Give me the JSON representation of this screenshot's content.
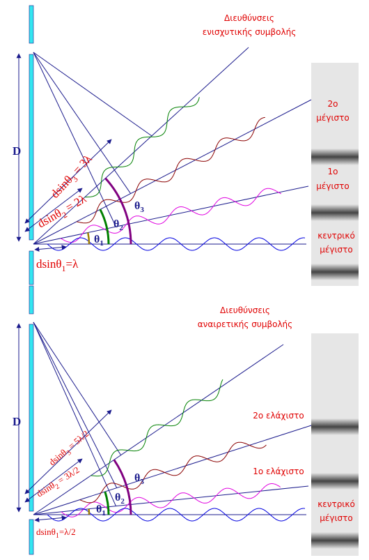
{
  "top": {
    "heading": [
      "Διευθύνσεις",
      "ενισχυτικής συμβολής"
    ],
    "second": [
      "2ο",
      "μέγιστο"
    ],
    "first": [
      "1ο",
      "μέγιστο"
    ],
    "central": [
      "κεντρικό",
      "μέγιστο"
    ],
    "d": "D",
    "path3": [
      "dsinθ",
      "3",
      " = 3λ"
    ],
    "path2": [
      "dsinθ",
      "2",
      " = 2λ"
    ],
    "path1": [
      "dsinθ",
      "1",
      "=λ"
    ],
    "theta1": [
      "θ",
      "1"
    ],
    "theta2": [
      "θ",
      "2"
    ],
    "theta3": [
      "θ",
      "3"
    ]
  },
  "bottom": {
    "heading": [
      "Διευθύνσεις",
      "αναιρετικής συμβολής"
    ],
    "second": "2ο ελάχιστο",
    "first": "1ο ελάχιστο",
    "central": [
      "κεντρικό",
      "μέγιστο"
    ],
    "d": "D",
    "path3": [
      "dsinθ",
      "3",
      " = 5λ/2"
    ],
    "path2": [
      "dsinθ",
      "2",
      " = 3λ/2"
    ],
    "path1": [
      "dsinθ",
      "1",
      "=λ/2"
    ],
    "theta1": [
      "θ",
      "1"
    ],
    "theta2": [
      "θ",
      "2"
    ],
    "theta3": [
      "θ",
      "3"
    ]
  }
}
